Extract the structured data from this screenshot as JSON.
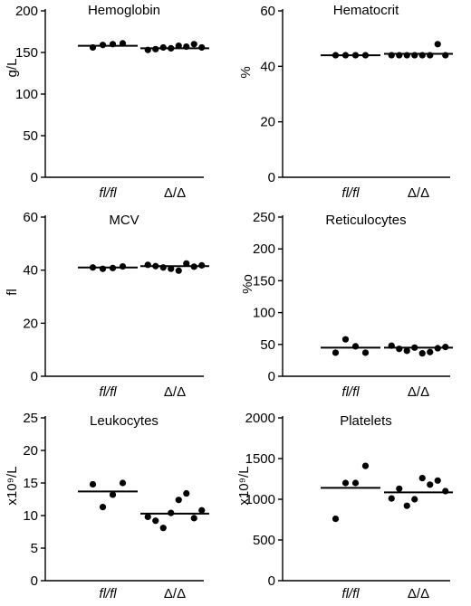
{
  "chart_data": [
    {
      "type": "scatter",
      "title": "Hemoglobin",
      "ylabel": "g/L",
      "ylim": [
        0,
        200
      ],
      "yticks": [
        "0",
        "50",
        "100",
        "150",
        "200"
      ],
      "categories": [
        "fl/fl",
        "Δ/Δ"
      ],
      "categories_italic": [
        true,
        false
      ],
      "means": [
        158,
        155
      ],
      "points": [
        [
          156,
          159,
          160,
          161
        ],
        [
          153,
          154,
          156,
          155,
          158,
          157,
          160,
          156
        ]
      ]
    },
    {
      "type": "scatter",
      "title": "Hematocrit",
      "ylabel": "%",
      "ylim": [
        0,
        60
      ],
      "yticks": [
        "0",
        "20",
        "40",
        "60"
      ],
      "categories": [
        "fl/fl",
        "Δ/Δ"
      ],
      "categories_italic": [
        true,
        false
      ],
      "means": [
        44,
        44.5
      ],
      "points": [
        [
          44,
          44,
          44,
          44
        ],
        [
          44,
          44,
          44,
          44,
          44,
          44,
          48,
          44
        ]
      ]
    },
    {
      "type": "scatter",
      "title": "MCV",
      "ylabel": "fl",
      "ylim": [
        0,
        60
      ],
      "yticks": [
        "0",
        "20",
        "40",
        "60"
      ],
      "categories": [
        "fl/fl",
        "Δ/Δ"
      ],
      "categories_italic": [
        true,
        false
      ],
      "means": [
        41,
        41.5
      ],
      "points": [
        [
          41,
          40.5,
          40.8,
          41.4
        ],
        [
          42,
          41.5,
          41,
          40.5,
          39.8,
          42.5,
          41.3,
          41.8
        ]
      ]
    },
    {
      "type": "scatter",
      "title": "Reticulocytes",
      "ylabel": "%o",
      "ylim": [
        0,
        250
      ],
      "yticks": [
        "0",
        "50",
        "100",
        "150",
        "200",
        "250"
      ],
      "categories": [
        "fl/fl",
        "Δ/Δ"
      ],
      "categories_italic": [
        true,
        false
      ],
      "means": [
        45,
        45
      ],
      "points": [
        [
          37,
          58,
          47,
          37
        ],
        [
          48,
          43,
          40,
          45,
          36,
          38,
          44,
          46
        ]
      ]
    },
    {
      "type": "scatter",
      "title": "Leukocytes",
      "ylabel": "x10⁹/L",
      "ylim": [
        0,
        25
      ],
      "yticks": [
        "0",
        "5",
        "10",
        "15",
        "20",
        "25"
      ],
      "categories": [
        "fl/fl",
        "Δ/Δ"
      ],
      "categories_italic": [
        true,
        false
      ],
      "means": [
        13.7,
        10.3
      ],
      "points": [
        [
          14.8,
          11.3,
          13.2,
          15
        ],
        [
          9.8,
          9.2,
          8.1,
          10.4,
          12.4,
          13.4,
          9.6,
          10.8
        ]
      ]
    },
    {
      "type": "scatter",
      "title": "Platelets",
      "ylabel": "x10⁹/L",
      "ylim": [
        0,
        2000
      ],
      "yticks": [
        "0",
        "500",
        "1000",
        "1500",
        "2000"
      ],
      "categories": [
        "fl/fl",
        "Δ/Δ"
      ],
      "categories_italic": [
        true,
        false
      ],
      "means": [
        1140,
        1085
      ],
      "points": [
        [
          760,
          1200,
          1200,
          1410
        ],
        [
          1010,
          1130,
          920,
          1000,
          1260,
          1180,
          1230,
          1100
        ]
      ]
    }
  ]
}
